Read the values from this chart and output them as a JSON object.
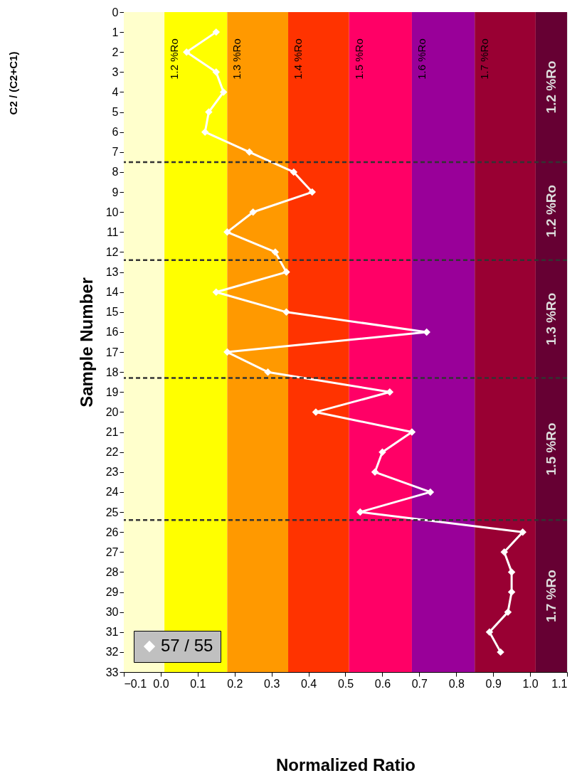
{
  "chart_data": {
    "type": "line",
    "xlabel": "Normalized Ratio",
    "ylabel": "Sample Number",
    "series": [
      {
        "name": "57 / 55",
        "color": "#ffffff",
        "x": [
          0.15,
          0.07,
          0.15,
          0.17,
          0.13,
          0.12,
          0.24,
          0.36,
          0.41,
          0.25,
          0.18,
          0.31,
          0.34,
          0.15,
          0.34,
          0.72,
          0.18,
          0.29,
          0.62,
          0.42,
          0.68,
          0.6,
          0.58,
          0.73,
          0.54,
          0.98,
          0.93,
          0.95,
          0.95,
          0.94,
          0.89,
          0.92
        ],
        "values": [
          1,
          2,
          3,
          4,
          5,
          6,
          7,
          8,
          9,
          10,
          11,
          12,
          13,
          14,
          15,
          16,
          17,
          18,
          19,
          20,
          21,
          22,
          23,
          24,
          25,
          26,
          27,
          28,
          29,
          30,
          31,
          32
        ]
      }
    ],
    "xlim": [
      -0.1,
      1.1
    ],
    "xticks": [
      -0.1,
      {
        "value": 0,
        "label": "0.0"
      },
      0.1,
      0.2,
      0.3,
      0.4,
      0.5,
      0.6,
      0.7,
      0.8,
      0.9,
      {
        "value": 1,
        "label": "1.0"
      },
      1.1
    ],
    "ylim": [
      33,
      0
    ],
    "yticks": [
      0,
      1,
      2,
      3,
      4,
      5,
      6,
      7,
      8,
      9,
      10,
      11,
      12,
      13,
      14,
      15,
      16,
      17,
      18,
      19,
      20,
      21,
      22,
      23,
      24,
      25,
      26,
      27,
      28,
      29,
      30,
      31,
      32,
      33
    ],
    "bands": [
      {
        "axis": "x",
        "from": -0.1,
        "to": 0.01,
        "color": "#ffffcc"
      },
      {
        "axis": "x",
        "from": 0.01,
        "to": 0.18,
        "color": "#ffff00"
      },
      {
        "axis": "x",
        "from": 0.18,
        "to": 0.345,
        "color": "#ff9900"
      },
      {
        "axis": "x",
        "from": 0.345,
        "to": 0.51,
        "color": "#ff3300"
      },
      {
        "axis": "x",
        "from": 0.51,
        "to": 0.68,
        "color": "#ff0066"
      },
      {
        "axis": "x",
        "from": 0.68,
        "to": 0.85,
        "color": "#990099"
      },
      {
        "axis": "x",
        "from": 0.85,
        "to": 1.015,
        "color": "#990033"
      },
      {
        "axis": "x",
        "from": 1.015,
        "to": 1.1,
        "color": "#660033"
      }
    ],
    "ref_lines": [
      {
        "axis": "y",
        "value": 7.5,
        "color": "#333333",
        "line_style": "dashed"
      },
      {
        "axis": "y",
        "value": 12.4,
        "color": "#333333",
        "line_style": "dashed"
      },
      {
        "axis": "y",
        "value": 18.3,
        "color": "#333333",
        "line_style": "dashed"
      },
      {
        "axis": "y",
        "value": 25.4,
        "color": "#333333",
        "line_style": "dashed"
      }
    ],
    "annotations": [
      "C2 / (C2+C1)",
      "1.2 %Ro",
      "1.3 %Ro",
      "1.4 %Ro",
      "1.5 %Ro",
      "1.6 %Ro",
      "1.7 %Ro",
      "1.2 %Ro",
      "1.2 %Ro",
      "1.3 %Ro",
      "1.5 %Ro",
      "1.7 %Ro"
    ],
    "legend": "bottom left",
    "marker": "diamond",
    "line_style": "solid",
    "grid": false
  }
}
